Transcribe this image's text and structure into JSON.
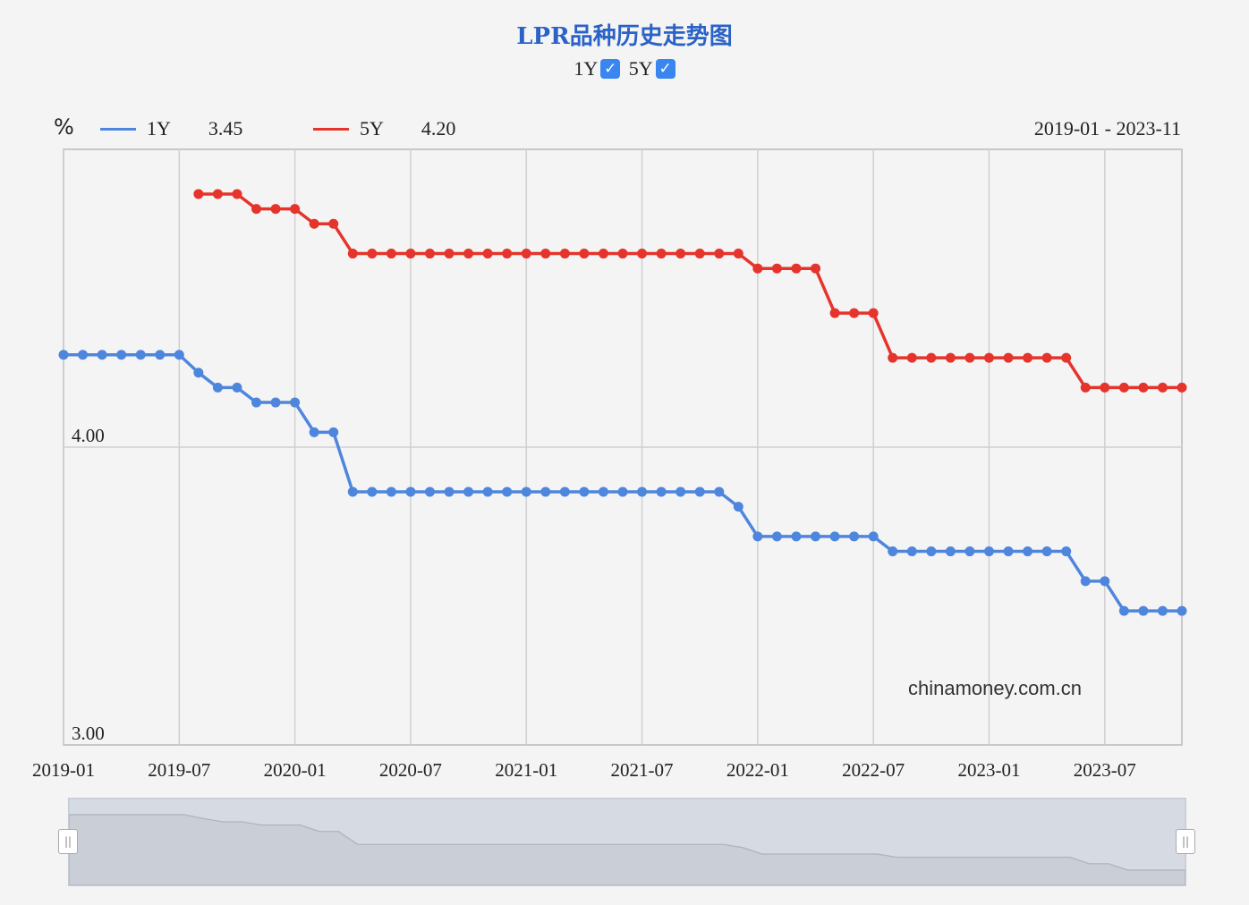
{
  "header": {
    "title": "LPR品种历史走势图",
    "toggle_1y": "1Y",
    "toggle_5y": "5Y",
    "check_mark": "✓"
  },
  "legend": {
    "unit": "%",
    "series_1y_name": "1Y",
    "series_1y_value": "3.45",
    "series_5y_name": "5Y",
    "series_5y_value": "4.20",
    "range": "2019-01 - 2023-11"
  },
  "watermark": "chinamoney.com.cn",
  "colors": {
    "1y": "#4f86dd",
    "5y": "#e5342b"
  },
  "chart_data": {
    "type": "line",
    "start_month": "2019-01",
    "ylim": [
      3.0,
      5.0
    ],
    "y_ticks": [
      {
        "value": 4.0,
        "label": "4.00"
      },
      {
        "value": 3.0,
        "label": "3.00"
      }
    ],
    "x_ticks": [
      "2019-01",
      "2019-07",
      "2020-01",
      "2020-07",
      "2021-01",
      "2021-07",
      "2022-01",
      "2022-07",
      "2023-01",
      "2023-07"
    ],
    "series": [
      {
        "name": "1Y",
        "values": [
          4.31,
          4.31,
          4.31,
          4.31,
          4.31,
          4.31,
          4.31,
          4.25,
          4.2,
          4.2,
          4.15,
          4.15,
          4.15,
          4.05,
          4.05,
          3.85,
          3.85,
          3.85,
          3.85,
          3.85,
          3.85,
          3.85,
          3.85,
          3.85,
          3.85,
          3.85,
          3.85,
          3.85,
          3.85,
          3.85,
          3.85,
          3.85,
          3.85,
          3.85,
          3.85,
          3.8,
          3.7,
          3.7,
          3.7,
          3.7,
          3.7,
          3.7,
          3.7,
          3.65,
          3.65,
          3.65,
          3.65,
          3.65,
          3.65,
          3.65,
          3.65,
          3.65,
          3.65,
          3.55,
          3.55,
          3.45,
          3.45,
          3.45,
          3.45
        ]
      },
      {
        "name": "5Y",
        "start_month": "2019-08",
        "values": [
          4.85,
          4.85,
          4.85,
          4.8,
          4.8,
          4.8,
          4.75,
          4.75,
          4.65,
          4.65,
          4.65,
          4.65,
          4.65,
          4.65,
          4.65,
          4.65,
          4.65,
          4.65,
          4.65,
          4.65,
          4.65,
          4.65,
          4.65,
          4.65,
          4.65,
          4.65,
          4.65,
          4.65,
          4.65,
          4.6,
          4.6,
          4.6,
          4.6,
          4.45,
          4.45,
          4.45,
          4.3,
          4.3,
          4.3,
          4.3,
          4.3,
          4.3,
          4.3,
          4.3,
          4.3,
          4.3,
          4.2,
          4.2,
          4.2,
          4.2,
          4.2,
          4.2
        ]
      }
    ]
  }
}
